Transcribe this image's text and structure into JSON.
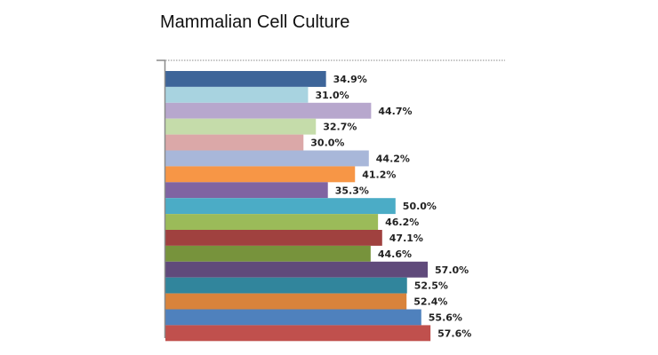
{
  "chart_data": {
    "type": "bar",
    "orientation": "horizontal",
    "title": "Mammalian Cell Culture",
    "xlabel": "",
    "ylabel": "",
    "xlim": [
      0,
      80
    ],
    "grid": false,
    "legend": "none",
    "bars": [
      {
        "value": 34.9,
        "label": "34.9%",
        "color": "#3E6599"
      },
      {
        "value": 31.0,
        "label": "31.0%",
        "color": "#A8D3E0"
      },
      {
        "value": 44.7,
        "label": "44.7%",
        "color": "#B7A7CD"
      },
      {
        "value": 32.7,
        "label": "32.7%",
        "color": "#C5DCAA"
      },
      {
        "value": 30.0,
        "label": "30.0%",
        "color": "#DBA8A8"
      },
      {
        "value": 44.2,
        "label": "44.2%",
        "color": "#A8B7D9"
      },
      {
        "value": 41.2,
        "label": "41.2%",
        "color": "#F79646"
      },
      {
        "value": 35.3,
        "label": "35.3%",
        "color": "#8064A2"
      },
      {
        "value": 50.0,
        "label": "50.0%",
        "color": "#4BACC6"
      },
      {
        "value": 46.2,
        "label": "46.2%",
        "color": "#9BBB59"
      },
      {
        "value": 47.1,
        "label": "47.1%",
        "color": "#A0413F"
      },
      {
        "value": 44.6,
        "label": "44.6%",
        "color": "#77933C"
      },
      {
        "value": 57.0,
        "label": "57.0%",
        "color": "#604A7B"
      },
      {
        "value": 52.5,
        "label": "52.5%",
        "color": "#31859C"
      },
      {
        "value": 52.4,
        "label": "52.4%",
        "color": "#D9833B"
      },
      {
        "value": 55.6,
        "label": "55.6%",
        "color": "#4F81BD"
      },
      {
        "value": 57.6,
        "label": "57.6%",
        "color": "#C0504D"
      }
    ]
  }
}
